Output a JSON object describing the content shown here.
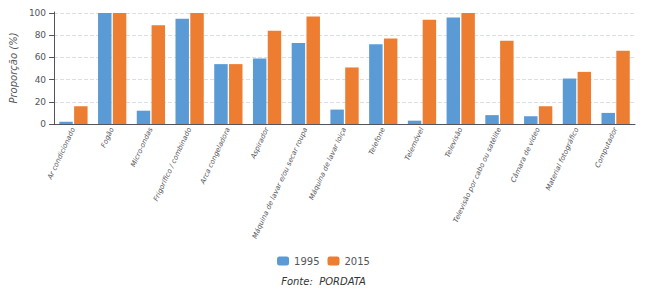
{
  "chart_data": {
    "type": "bar",
    "categories": [
      "Ar condicionado",
      "Fogão",
      "Micro-ondas",
      "Frigorífico / combinado",
      "Arca congeladora",
      "Aspirador",
      "Máquina de lavar e/ou secar roupa",
      "Máquina de lavar loiça",
      "Telefone",
      "Telemóvel",
      "Televisão",
      "Televisão por cabo ou satélite",
      "Câmara de vídeo",
      "Material fotográfico",
      "Computador"
    ],
    "series": [
      {
        "name": "1995",
        "color": "#5B9BD5",
        "values": [
          2,
          100,
          12,
          95,
          54,
          59,
          73,
          13,
          72,
          3,
          96,
          8,
          7,
          41,
          10
        ]
      },
      {
        "name": "2015",
        "color": "#ED7D31",
        "values": [
          16,
          100,
          89,
          100,
          54,
          84,
          97,
          51,
          77,
          94,
          100,
          75,
          16,
          47,
          66
        ]
      }
    ],
    "ylabel": "Proporção (%)",
    "ylim": [
      0,
      101
    ],
    "yticks": [
      0,
      20,
      40,
      60,
      80,
      100
    ],
    "grid": true,
    "legend": "bottom",
    "annotation": "Fonte:  PORDATA"
  }
}
